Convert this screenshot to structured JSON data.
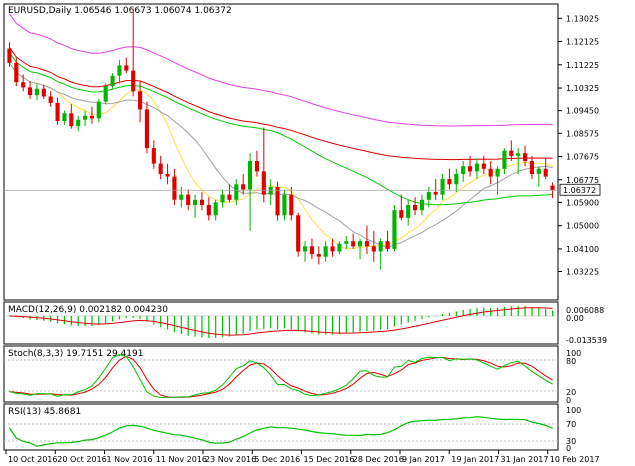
{
  "chart_data": [
    {
      "type": "candlestick",
      "title": "EURUSD,Daily  1.06546 1.06673 1.06074 1.06372",
      "overlays": [
        "moving-average-yellow",
        "moving-average-gray",
        "moving-average-green",
        "moving-average-red",
        "moving-average-magenta"
      ],
      "ylim": [
        1.022,
        1.135
      ],
      "y_ticks": [
        1.13025,
        1.12125,
        1.11225,
        1.10325,
        1.0945,
        1.08575,
        1.07675,
        1.06775,
        1.059,
        1.05,
        1.041,
        1.03225
      ],
      "current_price_label": "1.06372",
      "candles": [
        {
          "o": 1.1185,
          "h": 1.121,
          "l": 1.1115,
          "c": 1.113
        },
        {
          "o": 1.113,
          "h": 1.115,
          "l": 1.104,
          "c": 1.1055
        },
        {
          "o": 1.1055,
          "h": 1.1085,
          "l": 1.102,
          "c": 1.1035
        },
        {
          "o": 1.1035,
          "h": 1.106,
          "l": 1.099,
          "c": 1.1005
        },
        {
          "o": 1.1005,
          "h": 1.105,
          "l": 1.0985,
          "c": 1.103
        },
        {
          "o": 1.103,
          "h": 1.1045,
          "l": 1.099,
          "c": 1.1
        },
        {
          "o": 1.1,
          "h": 1.102,
          "l": 1.096,
          "c": 1.0975
        },
        {
          "o": 1.0975,
          "h": 1.0995,
          "l": 1.089,
          "c": 1.0905
        },
        {
          "o": 1.0905,
          "h": 1.0945,
          "l": 1.089,
          "c": 1.0935
        },
        {
          "o": 1.0935,
          "h": 1.097,
          "l": 1.0875,
          "c": 1.0885
        },
        {
          "o": 1.0885,
          "h": 1.0925,
          "l": 1.0865,
          "c": 1.091
        },
        {
          "o": 1.091,
          "h": 1.0945,
          "l": 1.0885,
          "c": 1.0925
        },
        {
          "o": 1.0925,
          "h": 1.096,
          "l": 1.0895,
          "c": 1.0915
        },
        {
          "o": 1.0915,
          "h": 1.099,
          "l": 1.09,
          "c": 1.098
        },
        {
          "o": 1.098,
          "h": 1.105,
          "l": 1.097,
          "c": 1.104
        },
        {
          "o": 1.104,
          "h": 1.109,
          "l": 1.103,
          "c": 1.108
        },
        {
          "o": 1.108,
          "h": 1.114,
          "l": 1.105,
          "c": 1.112
        },
        {
          "o": 1.112,
          "h": 1.115,
          "l": 1.109,
          "c": 1.11
        },
        {
          "o": 1.11,
          "h": 1.134,
          "l": 1.1,
          "c": 1.102
        },
        {
          "o": 1.102,
          "h": 1.106,
          "l": 1.09,
          "c": 1.095
        },
        {
          "o": 1.095,
          "h": 1.098,
          "l": 1.078,
          "c": 1.08
        },
        {
          "o": 1.08,
          "h": 1.083,
          "l": 1.072,
          "c": 1.074
        },
        {
          "o": 1.074,
          "h": 1.077,
          "l": 1.068,
          "c": 1.07
        },
        {
          "o": 1.07,
          "h": 1.074,
          "l": 1.066,
          "c": 1.069
        },
        {
          "o": 1.069,
          "h": 1.072,
          "l": 1.058,
          "c": 1.06
        },
        {
          "o": 1.06,
          "h": 1.065,
          "l": 1.057,
          "c": 1.062
        },
        {
          "o": 1.062,
          "h": 1.064,
          "l": 1.056,
          "c": 1.058
        },
        {
          "o": 1.058,
          "h": 1.062,
          "l": 1.053,
          "c": 1.06
        },
        {
          "o": 1.06,
          "h": 1.063,
          "l": 1.056,
          "c": 1.058
        },
        {
          "o": 1.058,
          "h": 1.061,
          "l": 1.052,
          "c": 1.054
        },
        {
          "o": 1.054,
          "h": 1.06,
          "l": 1.052,
          "c": 1.059
        },
        {
          "o": 1.059,
          "h": 1.064,
          "l": 1.057,
          "c": 1.062
        },
        {
          "o": 1.062,
          "h": 1.066,
          "l": 1.059,
          "c": 1.06
        },
        {
          "o": 1.06,
          "h": 1.068,
          "l": 1.058,
          "c": 1.066
        },
        {
          "o": 1.066,
          "h": 1.07,
          "l": 1.062,
          "c": 1.064
        },
        {
          "o": 1.064,
          "h": 1.078,
          "l": 1.048,
          "c": 1.075
        },
        {
          "o": 1.075,
          "h": 1.079,
          "l": 1.069,
          "c": 1.071
        },
        {
          "o": 1.071,
          "h": 1.088,
          "l": 1.059,
          "c": 1.062
        },
        {
          "o": 1.062,
          "h": 1.068,
          "l": 1.058,
          "c": 1.065
        },
        {
          "o": 1.065,
          "h": 1.067,
          "l": 1.052,
          "c": 1.054
        },
        {
          "o": 1.054,
          "h": 1.064,
          "l": 1.052,
          "c": 1.062
        },
        {
          "o": 1.062,
          "h": 1.065,
          "l": 1.052,
          "c": 1.054
        },
        {
          "o": 1.054,
          "h": 1.055,
          "l": 1.038,
          "c": 1.04
        },
        {
          "o": 1.04,
          "h": 1.044,
          "l": 1.036,
          "c": 1.042
        },
        {
          "o": 1.042,
          "h": 1.045,
          "l": 1.037,
          "c": 1.039
        },
        {
          "o": 1.039,
          "h": 1.042,
          "l": 1.035,
          "c": 1.038
        },
        {
          "o": 1.038,
          "h": 1.044,
          "l": 1.036,
          "c": 1.042
        },
        {
          "o": 1.042,
          "h": 1.045,
          "l": 1.038,
          "c": 1.04
        },
        {
          "o": 1.04,
          "h": 1.044,
          "l": 1.039,
          "c": 1.043
        },
        {
          "o": 1.043,
          "h": 1.046,
          "l": 1.041,
          "c": 1.044
        },
        {
          "o": 1.044,
          "h": 1.047,
          "l": 1.041,
          "c": 1.042
        },
        {
          "o": 1.042,
          "h": 1.045,
          "l": 1.037,
          "c": 1.044
        },
        {
          "o": 1.044,
          "h": 1.05,
          "l": 1.039,
          "c": 1.042
        },
        {
          "o": 1.042,
          "h": 1.048,
          "l": 1.036,
          "c": 1.04
        },
        {
          "o": 1.04,
          "h": 1.045,
          "l": 1.033,
          "c": 1.044
        },
        {
          "o": 1.044,
          "h": 1.048,
          "l": 1.04,
          "c": 1.041
        },
        {
          "o": 1.041,
          "h": 1.058,
          "l": 1.04,
          "c": 1.056
        },
        {
          "o": 1.056,
          "h": 1.062,
          "l": 1.052,
          "c": 1.053
        },
        {
          "o": 1.053,
          "h": 1.06,
          "l": 1.05,
          "c": 1.058
        },
        {
          "o": 1.058,
          "h": 1.061,
          "l": 1.054,
          "c": 1.056
        },
        {
          "o": 1.056,
          "h": 1.062,
          "l": 1.054,
          "c": 1.06
        },
        {
          "o": 1.06,
          "h": 1.065,
          "l": 1.057,
          "c": 1.063
        },
        {
          "o": 1.063,
          "h": 1.068,
          "l": 1.06,
          "c": 1.062
        },
        {
          "o": 1.062,
          "h": 1.07,
          "l": 1.06,
          "c": 1.068
        },
        {
          "o": 1.068,
          "h": 1.072,
          "l": 1.064,
          "c": 1.066
        },
        {
          "o": 1.066,
          "h": 1.072,
          "l": 1.063,
          "c": 1.07
        },
        {
          "o": 1.07,
          "h": 1.075,
          "l": 1.067,
          "c": 1.073
        },
        {
          "o": 1.073,
          "h": 1.077,
          "l": 1.069,
          "c": 1.071
        },
        {
          "o": 1.071,
          "h": 1.076,
          "l": 1.068,
          "c": 1.074
        },
        {
          "o": 1.074,
          "h": 1.077,
          "l": 1.07,
          "c": 1.072
        },
        {
          "o": 1.072,
          "h": 1.075,
          "l": 1.066,
          "c": 1.069
        },
        {
          "o": 1.069,
          "h": 1.073,
          "l": 1.062,
          "c": 1.072
        },
        {
          "o": 1.072,
          "h": 1.08,
          "l": 1.07,
          "c": 1.079
        },
        {
          "o": 1.079,
          "h": 1.083,
          "l": 1.075,
          "c": 1.077
        },
        {
          "o": 1.077,
          "h": 1.08,
          "l": 1.07,
          "c": 1.078
        },
        {
          "o": 1.078,
          "h": 1.081,
          "l": 1.073,
          "c": 1.075
        },
        {
          "o": 1.075,
          "h": 1.077,
          "l": 1.068,
          "c": 1.07
        },
        {
          "o": 1.07,
          "h": 1.073,
          "l": 1.065,
          "c": 1.072
        },
        {
          "o": 1.072,
          "h": 1.076,
          "l": 1.068,
          "c": 1.069
        },
        {
          "o": 1.0655,
          "h": 1.0667,
          "l": 1.0607,
          "c": 1.0637
        }
      ]
    },
    {
      "type": "line",
      "title": "MACD(12,26,9) 0.002182 0.004230",
      "y_ticks": [
        "0.006088",
        "0.00",
        "-0.013539"
      ],
      "ylim": [
        -0.0148,
        0.0068
      ]
    },
    {
      "type": "line",
      "title": "Stoch(8,3,3) 19.7151 29.4191",
      "y_ticks": [
        "100",
        "80",
        "20",
        "0"
      ],
      "ylim": [
        0,
        100
      ]
    },
    {
      "type": "line",
      "title": "RSI(13) 45.8681",
      "y_ticks": [
        "100",
        "70",
        "30",
        "0"
      ],
      "ylim": [
        0,
        100
      ]
    }
  ],
  "x_axis": {
    "tick_labels": [
      "10 Oct 2016",
      "20 Oct 2016",
      "1 Nov 2016",
      "11 Nov 2016",
      "23 Nov 2016",
      "5 Dec 2016",
      "15 Dec 2016",
      "28 Dec 2016",
      "9 Jan 2017",
      "19 Jan 2017",
      "31 Jan 2017",
      "10 Feb 2017"
    ]
  },
  "colors": {
    "bull": "#00b400",
    "bear": "#e00000",
    "ma_yellow": "#ffe040",
    "ma_gray": "#a0a0a0",
    "ma_green": "#00cc00",
    "ma_red": "#dd0000",
    "ma_magenta": "#e040e0",
    "macd_hist": "#00c000",
    "signal": "#e00000",
    "stoch_main": "#00c000",
    "stoch_signal": "#e00000",
    "rsi": "#00c000",
    "frame": "#000000",
    "label_bg": "#ffffff"
  }
}
